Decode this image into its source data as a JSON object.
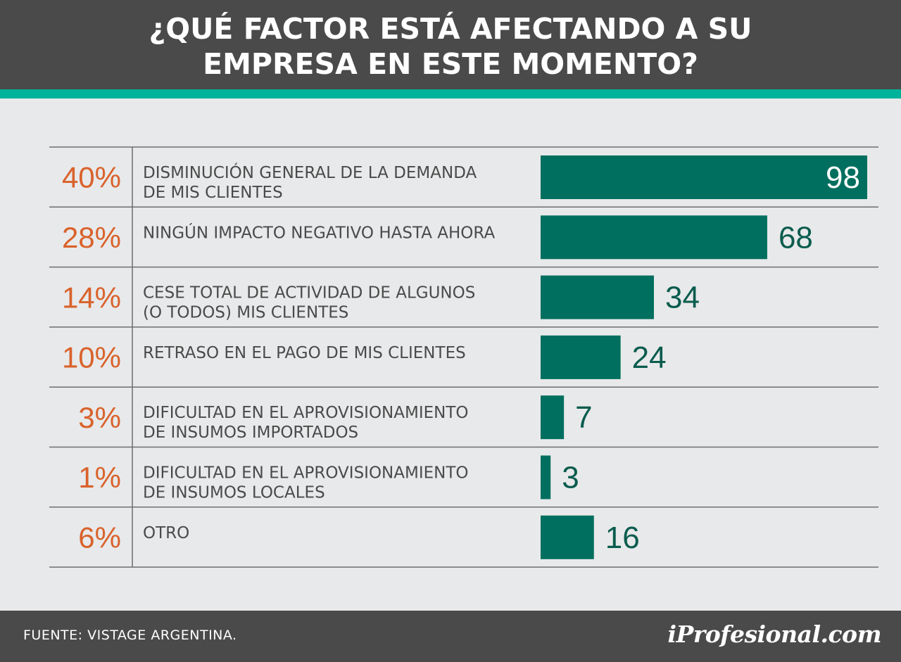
{
  "header": {
    "title": "¿QUÉ FACTOR ESTÁ AFECTANDO A SU\nEMPRESA EN ESTE MOMENTO?"
  },
  "footer": {
    "source": "FUENTE: VISTAGE ARGENTINA.",
    "logo": "iProfesional.com"
  },
  "colors": {
    "bar": "#006f5f",
    "percent": "#d9622b",
    "header": "#4a4a4a",
    "accent": "#00b39a",
    "label": "#4a4a4a",
    "value_outside": "#0a5c4e",
    "value_inside": "#ffffff"
  },
  "chart_data": {
    "type": "bar",
    "orientation": "horizontal",
    "title": "¿QUÉ FACTOR ESTÁ AFECTANDO A SU EMPRESA EN ESTE MOMENTO?",
    "categories": [
      [
        "DISMINUCIÓN GENERAL DE LA DEMANDA",
        "DE MIS CLIENTES"
      ],
      [
        "NINGÚN IMPACTO NEGATIVO HASTA AHORA"
      ],
      [
        "CESE TOTAL DE ACTIVIDAD DE ALGUNOS",
        "(O TODOS) MIS CLIENTES"
      ],
      [
        "RETRASO EN EL PAGO DE MIS CLIENTES"
      ],
      [
        "DIFICULTAD EN EL APROVISIONAMIENTO",
        "DE INSUMOS IMPORTADOS"
      ],
      [
        "DIFICULTAD EN EL APROVISIONAMIENTO",
        "DE INSUMOS LOCALES"
      ],
      [
        "OTRO"
      ]
    ],
    "percentages": [
      "40%",
      "28%",
      "14%",
      "10%",
      "3%",
      "1%",
      "6%"
    ],
    "values": [
      98,
      68,
      34,
      24,
      7,
      3,
      16
    ],
    "xlim": [
      0,
      98
    ],
    "grid": false
  }
}
